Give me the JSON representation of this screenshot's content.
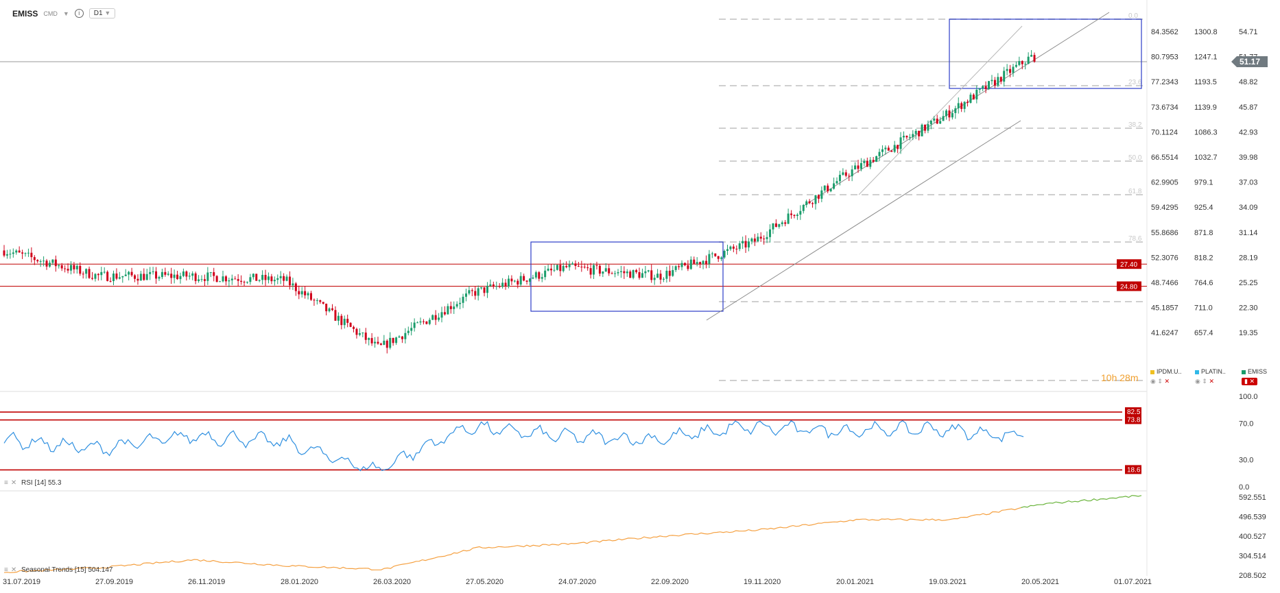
{
  "header": {
    "symbol": "EMISS",
    "source": "CMD",
    "timeframe": "D1"
  },
  "colors": {
    "up": "#1a9c6b",
    "down": "#d0021b",
    "rsi": "#2e8fe0",
    "seasonal_early": "#f5a040",
    "seasonal_late": "#6ab43c",
    "level": "#c00000",
    "box": "#2c3cc8"
  },
  "price_axis": {
    "col1": [
      "84.3562",
      "80.7953",
      "77.2343",
      "73.6734",
      "70.1124",
      "66.5514",
      "62.9905",
      "59.4295",
      "55.8686",
      "52.3076",
      "48.7466",
      "45.1857",
      "41.6247"
    ],
    "col2": [
      "1300.8",
      "1247.1",
      "1193.5",
      "1139.9",
      "1086.3",
      "1032.7",
      "979.1",
      "925.4",
      "871.8",
      "818.2",
      "764.6",
      "711.0",
      "657.4"
    ],
    "col3": [
      "54.71",
      "51.77",
      "48.82",
      "45.87",
      "42.93",
      "39.98",
      "37.03",
      "34.09",
      "31.14",
      "28.19",
      "25.25",
      "22.30",
      "19.35"
    ]
  },
  "current_price": "51.17",
  "levels": [
    "27.40",
    "24.80"
  ],
  "fib_labels": [
    "0.0",
    "23.6",
    "38.2",
    "50.0",
    "61.8",
    "78.6"
  ],
  "legend": {
    "item1": "IPDM.U..",
    "item2": "PLATIN..",
    "item3": "EMISS"
  },
  "countdown": "10h 28m",
  "rsi_panel": {
    "label": "RSI",
    "period": "[14]",
    "value": "55.3",
    "axis": [
      "100.0",
      "70.0",
      "30.0",
      "0.0"
    ],
    "levels": [
      "82.5",
      "73.8",
      "18.6"
    ]
  },
  "seasonal_panel": {
    "label": "Seasonal",
    "trends_label": "Trends",
    "period": "[15]",
    "value": "504.147",
    "axis": [
      "592.551",
      "496.539",
      "400.527",
      "304.514",
      "208.502"
    ]
  },
  "x_axis": [
    "31.07.2019",
    "27.09.2019",
    "26.11.2019",
    "28.01.2020",
    "26.03.2020",
    "27.05.2020",
    "24.07.2020",
    "22.09.2020",
    "19.11.2020",
    "20.01.2021",
    "19.03.2021",
    "20.05.2021",
    "01.07.2021"
  ],
  "chart_data": [
    {
      "type": "candlestick",
      "title": "EMISS",
      "x": [
        "31.07.2019",
        "27.09.2019",
        "26.11.2019",
        "28.01.2020",
        "26.03.2020",
        "27.05.2020",
        "24.07.2020",
        "22.09.2020",
        "19.11.2020",
        "20.01.2021",
        "19.03.2021",
        "20.05.2021"
      ],
      "series": [
        {
          "values": [
            29.0,
            26.0,
            26.0,
            25.5,
            17.5,
            24.0,
            27.0,
            26.0,
            30.0,
            38.0,
            44.5,
            52.0
          ]
        }
      ],
      "last": 51.17,
      "ylim": [
        18.0,
        56.2
      ]
    },
    {
      "type": "line",
      "x": [
        "31.07.2019",
        "27.09.2019",
        "26.11.2019",
        "28.01.2020",
        "26.03.2020",
        "27.05.2020",
        "24.07.2020",
        "22.09.2020",
        "19.11.2020",
        "20.01.2021",
        "19.03.2021",
        "20.05.2021"
      ],
      "series": [
        {
          "values": [
            52,
            42,
            56,
            50,
            18,
            66,
            56,
            52,
            66,
            62,
            64,
            55.3
          ]
        }
      ],
      "ylim": [
        0,
        100
      ]
    },
    {
      "type": "line",
      "x": [
        "31.07.2019",
        "27.09.2019",
        "26.11.2019",
        "28.01.2020",
        "26.03.2020",
        "27.05.2020",
        "24.07.2020",
        "22.09.2020",
        "19.11.2020",
        "20.01.2021",
        "19.03.2021",
        "20.05.2021",
        "01.07.2021"
      ],
      "series": [
        {
          "values": [
            208,
            230,
            270,
            240,
            222,
            330,
            350,
            390,
            420,
            470,
            470,
            550,
            590
          ]
        }
      ],
      "ylim": [
        190,
        600
      ]
    }
  ]
}
